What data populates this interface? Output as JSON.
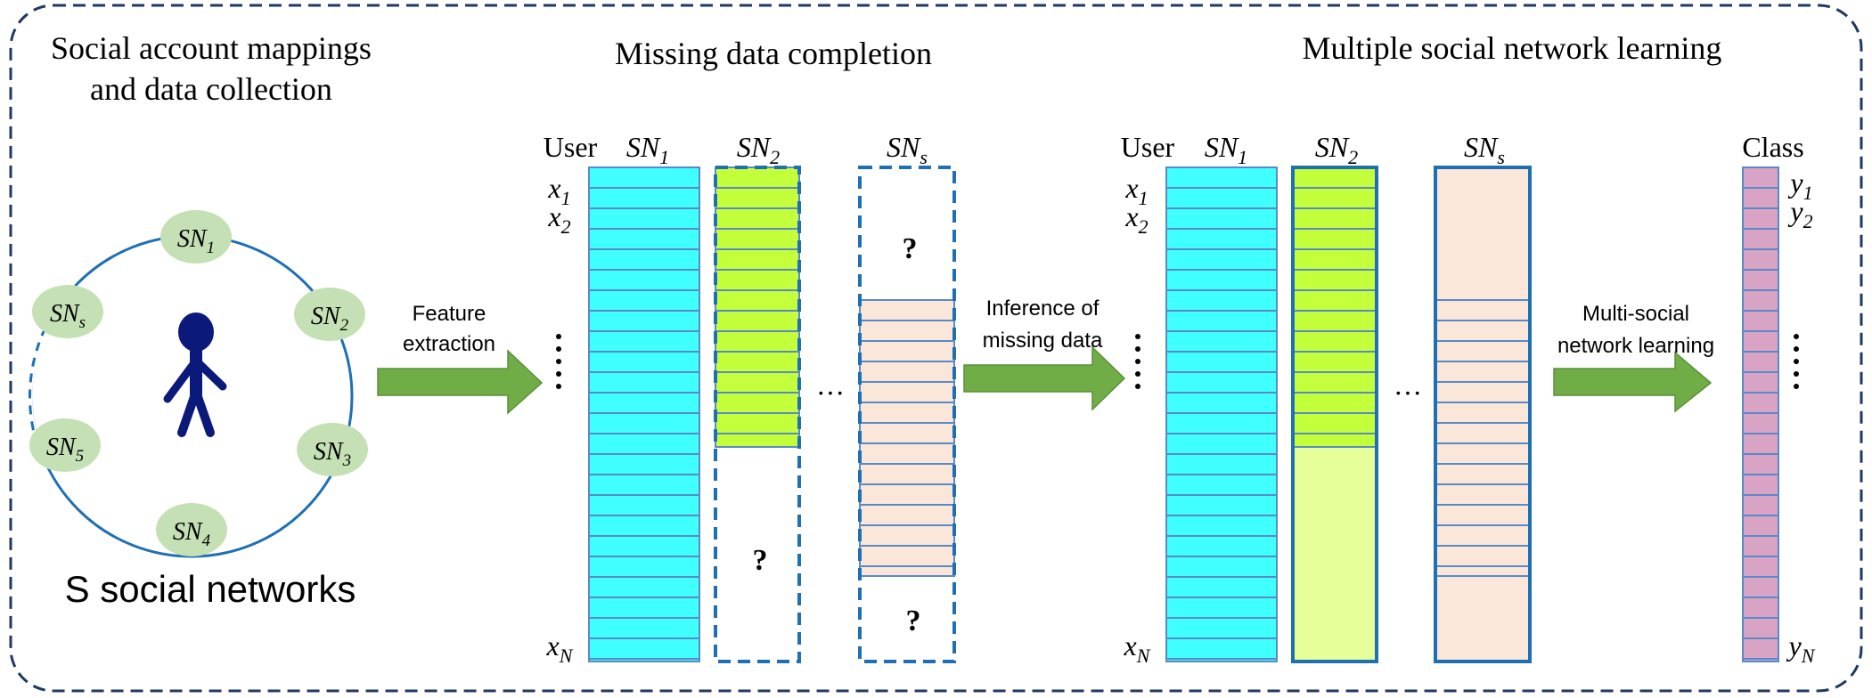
{
  "titles": {
    "section1_line1": "Social account mappings",
    "section1_line2": "and data collection",
    "section2": "Missing data completion",
    "section3": "Multiple social network learning"
  },
  "circle": {
    "nodes": [
      {
        "base": "SN",
        "sub": "1"
      },
      {
        "base": "SN",
        "sub": "2"
      },
      {
        "base": "SN",
        "sub": "3"
      },
      {
        "base": "SN",
        "sub": "4"
      },
      {
        "base": "SN",
        "sub": "5"
      },
      {
        "base": "SN",
        "sub": "s"
      }
    ],
    "caption": "S social networks"
  },
  "arrows": {
    "feature_line1": "Feature",
    "feature_line2": "extraction",
    "inference_line1": "Inference of",
    "inference_line2": "missing data",
    "multi_line1": "Multi-social",
    "multi_line2": "network learning"
  },
  "matrix": {
    "user_label": "User",
    "class_label": "Class",
    "col1": {
      "base": "SN",
      "sub": "1"
    },
    "col2": {
      "base": "SN",
      "sub": "2"
    },
    "cols": {
      "base": "SN",
      "sub": "s"
    },
    "x1": {
      "base": "x",
      "sub": "1"
    },
    "x2": {
      "base": "x",
      "sub": "2"
    },
    "xN": {
      "base": "x",
      "sub": "N"
    },
    "y1": {
      "base": "y",
      "sub": "1"
    },
    "y2": {
      "base": "y",
      "sub": "2"
    },
    "yN": {
      "base": "y",
      "sub": "N"
    },
    "missing_mark": "?",
    "ellipsis_h": "···",
    "ellipsis_v": "⋮"
  },
  "colors": {
    "frame": "#1f3864",
    "cyan": "#40ffff",
    "green": "#c4ff3c",
    "green_light": "#e6ff99",
    "peach": "#fbe6da",
    "pink": "#d9a3c6",
    "cell_border": "#5a8ac6",
    "dashed_blue": "#1f6fb5",
    "arrow": "#70ad47",
    "node": "#c5e0b4",
    "person": "#0b1a7a"
  }
}
